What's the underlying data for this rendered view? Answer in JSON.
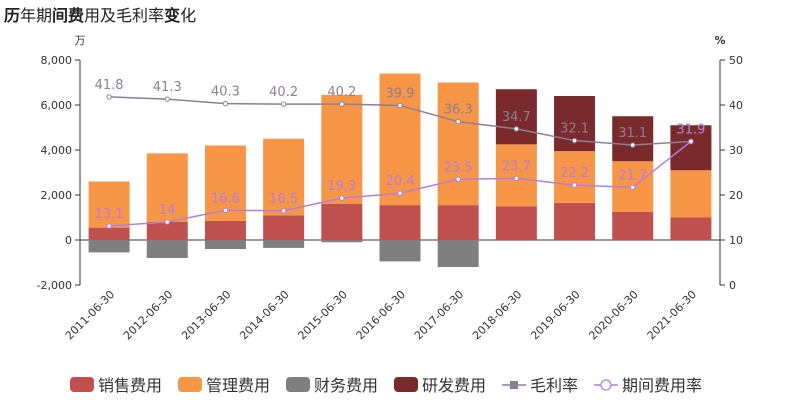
{
  "title": {
    "parts": [
      {
        "text": "历",
        "bold": true
      },
      {
        "text": "年期",
        "bold": false
      },
      {
        "text": "间费",
        "bold": true
      },
      {
        "text": "用及毛利率",
        "bold": false
      },
      {
        "text": "变",
        "bold": true
      },
      {
        "text": "化",
        "bold": false
      }
    ]
  },
  "chart_data": {
    "type": "bar",
    "title": "历年期间费用及毛利率变化",
    "left_unit": "万",
    "right_unit": "%",
    "categories": [
      "2011-06-30",
      "2012-06-30",
      "2013-06-30",
      "2014-06-30",
      "2015-06-30",
      "2016-06-30",
      "2017-06-30",
      "2018-06-30",
      "2019-06-30",
      "2020-06-30",
      "2021-06-30"
    ],
    "left_axis": {
      "min": -2000,
      "max": 8000,
      "ticks": [
        -2000,
        0,
        2000,
        4000,
        6000,
        8000
      ],
      "tick_labels": [
        "-2,000",
        "0",
        "2,000",
        "4,000",
        "6,000",
        "8,000"
      ]
    },
    "right_axis": {
      "min": 0,
      "max": 50,
      "ticks": [
        0,
        10,
        20,
        30,
        40,
        50
      ],
      "tick_labels": [
        "0",
        "10",
        "20",
        "30",
        "40",
        "50"
      ]
    },
    "series": [
      {
        "name": "销售费用",
        "kind": "bar",
        "color": "#c0504d",
        "values": [
          550,
          800,
          850,
          1100,
          1600,
          1550,
          1550,
          1500,
          1650,
          1250,
          1000
        ]
      },
      {
        "name": "管理费用",
        "kind": "bar",
        "color": "#f79646",
        "values": [
          2050,
          3050,
          3350,
          3400,
          4850,
          5850,
          5450,
          2750,
          2300,
          2250,
          2100
        ]
      },
      {
        "name": "财务费用",
        "kind": "bar",
        "color": "#7f7f7f",
        "values": [
          -550,
          -800,
          -400,
          -350,
          -100,
          -950,
          -1200,
          0,
          0,
          0,
          0
        ]
      },
      {
        "name": "研发费用",
        "kind": "bar",
        "color": "#7b2a2b",
        "values": [
          0,
          0,
          0,
          0,
          0,
          0,
          0,
          2450,
          2450,
          2000,
          2000
        ]
      },
      {
        "name": "毛利率",
        "kind": "line",
        "axis": "right",
        "color": "#8b7f98",
        "values": [
          41.8,
          41.3,
          40.3,
          40.2,
          40.2,
          39.9,
          36.3,
          34.7,
          32.1,
          31.1,
          31.9
        ],
        "labels": [
          "41.8",
          "41.3",
          "40.3",
          "40.2",
          "40.2",
          "39.9",
          "36.3",
          "34.7",
          "32.1",
          "31.1",
          "31.9"
        ]
      },
      {
        "name": "期间费用率",
        "kind": "line",
        "axis": "right",
        "color": "#b57cdb",
        "values": [
          13.1,
          14.0,
          16.6,
          16.5,
          19.3,
          20.4,
          23.5,
          23.7,
          22.2,
          21.7,
          31.9
        ],
        "labels": [
          "13.1",
          "14",
          "16.6",
          "16.5",
          "19.3",
          "20.4",
          "23.5",
          "23.7",
          "22.2",
          "21.7",
          "31.9"
        ]
      }
    ],
    "legend_position": "bottom"
  }
}
